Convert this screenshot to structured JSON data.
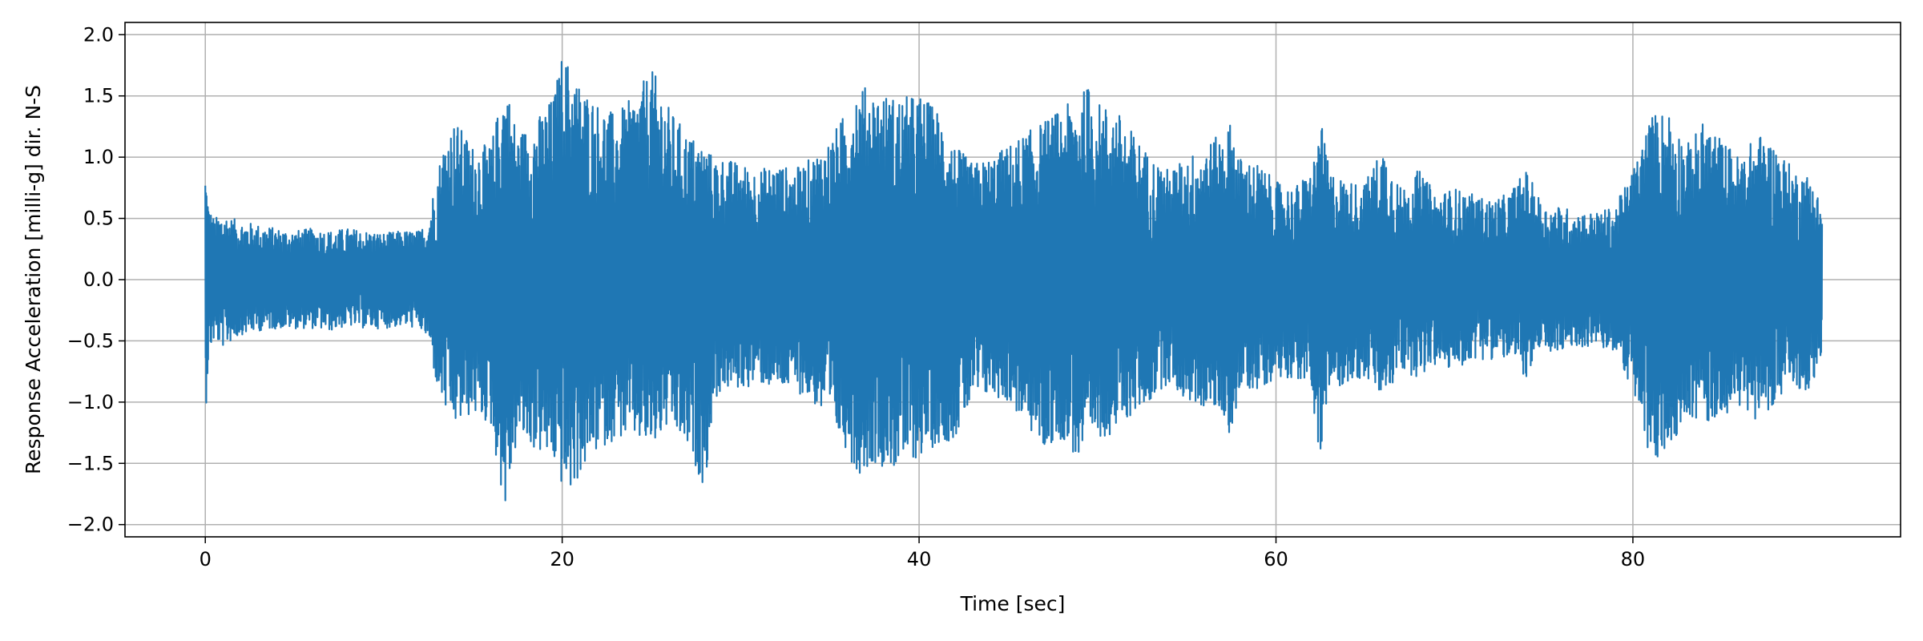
{
  "chart_data": {
    "type": "line",
    "title": "",
    "xlabel": "Time [sec]",
    "ylabel": "Response Acceleration [milli-g] dir. N-S",
    "xlim": [
      -4.5,
      95.0
    ],
    "ylim": [
      -2.1,
      2.1
    ],
    "xticks": [
      0,
      20,
      40,
      60,
      80
    ],
    "xtick_labels": [
      "0",
      "20",
      "40",
      "60",
      "80"
    ],
    "yticks": [
      2.0,
      1.5,
      1.0,
      0.5,
      0.0,
      -0.5,
      -1.0,
      -1.5,
      -2.0
    ],
    "ytick_labels": [
      "2.0",
      "1.5",
      "1.0",
      "0.5",
      "0.0",
      "−0.5",
      "−1.0",
      "−1.5",
      "−2.0"
    ],
    "grid": true,
    "line_color": "#1f77b4",
    "series": [
      {
        "name": "",
        "envelope": {
          "t": [
            0,
            0.2,
            0.5,
            1,
            1.5,
            2,
            3,
            4,
            5,
            6,
            7,
            8,
            9,
            10,
            11,
            12,
            12.5,
            13,
            13.5,
            14,
            15,
            16,
            16.8,
            17.5,
            18.5,
            19.5,
            20,
            20.5,
            21,
            22,
            23,
            24,
            25,
            25.5,
            26,
            27,
            28,
            28.5,
            29,
            30,
            31,
            32,
            33,
            34,
            35,
            36,
            36.5,
            37.5,
            38.5,
            39.5,
            40,
            41,
            42,
            43,
            44,
            45,
            46,
            47,
            48,
            49,
            49.5,
            50,
            51,
            52,
            53,
            53.5,
            54,
            55,
            56,
            57,
            57.5,
            58,
            59,
            60,
            61,
            62,
            62.5,
            63,
            64,
            65,
            66,
            67,
            68,
            69,
            70,
            71,
            72,
            73,
            74,
            75,
            76,
            77,
            78,
            79,
            80,
            81,
            82,
            83,
            84,
            85,
            86,
            87,
            88,
            89,
            90,
            90.6
          ],
          "max": [
            0.95,
            0.6,
            0.5,
            0.55,
            0.5,
            0.48,
            0.45,
            0.42,
            0.4,
            0.42,
            0.4,
            0.42,
            0.4,
            0.38,
            0.4,
            0.4,
            0.5,
            0.9,
            1.2,
            1.3,
            1.1,
            1.1,
            1.65,
            1.2,
            1.3,
            1.5,
            1.85,
            1.75,
            1.6,
            1.45,
            1.35,
            1.5,
            1.72,
            1.6,
            1.4,
            1.2,
            1.1,
            1.0,
            1.0,
            0.95,
            0.9,
            0.95,
            0.9,
            1.0,
            1.15,
            1.4,
            1.6,
            1.55,
            1.5,
            1.5,
            1.52,
            1.4,
            1.1,
            0.95,
            1.0,
            1.1,
            1.2,
            1.3,
            1.4,
            1.5,
            1.6,
            1.45,
            1.4,
            1.2,
            1.0,
            0.95,
            0.9,
            1.0,
            1.1,
            1.2,
            1.3,
            1.0,
            0.95,
            0.8,
            0.75,
            0.9,
            1.3,
            0.9,
            0.8,
            0.8,
            1.1,
            0.75,
            0.9,
            0.7,
            0.75,
            0.7,
            0.65,
            0.7,
            0.9,
            0.6,
            0.6,
            0.55,
            0.55,
            0.6,
            0.9,
            1.35,
            1.4,
            1.1,
            1.3,
            1.15,
            1.0,
            1.2,
            1.1,
            0.9,
            0.85,
            0.6
          ],
          "min": [
            -1.15,
            -0.6,
            -0.5,
            -0.55,
            -0.5,
            -0.45,
            -0.42,
            -0.4,
            -0.4,
            -0.4,
            -0.42,
            -0.38,
            -0.4,
            -0.4,
            -0.38,
            -0.4,
            -0.5,
            -0.9,
            -1.1,
            -1.2,
            -1.1,
            -1.2,
            -1.9,
            -1.3,
            -1.4,
            -1.5,
            -1.7,
            -1.75,
            -1.6,
            -1.4,
            -1.3,
            -1.3,
            -1.4,
            -1.3,
            -1.2,
            -1.4,
            -1.7,
            -1.0,
            -0.9,
            -0.9,
            -0.85,
            -0.9,
            -0.9,
            -1.0,
            -1.2,
            -1.4,
            -1.6,
            -1.5,
            -1.55,
            -1.5,
            -1.45,
            -1.35,
            -1.3,
            -1.0,
            -0.95,
            -1.0,
            -1.2,
            -1.4,
            -1.3,
            -1.5,
            -1.45,
            -1.3,
            -1.25,
            -1.1,
            -1.0,
            -0.9,
            -0.85,
            -1.0,
            -1.05,
            -1.1,
            -1.3,
            -0.9,
            -0.9,
            -0.8,
            -0.8,
            -0.9,
            -1.55,
            -0.9,
            -0.85,
            -0.8,
            -1.0,
            -0.75,
            -0.8,
            -0.7,
            -0.75,
            -0.65,
            -0.65,
            -0.65,
            -0.8,
            -0.6,
            -0.6,
            -0.55,
            -0.55,
            -0.6,
            -0.9,
            -1.55,
            -1.4,
            -1.1,
            -1.2,
            -1.1,
            -1.05,
            -1.15,
            -1.0,
            -0.9,
            -0.9,
            -0.6
          ]
        }
      }
    ]
  }
}
